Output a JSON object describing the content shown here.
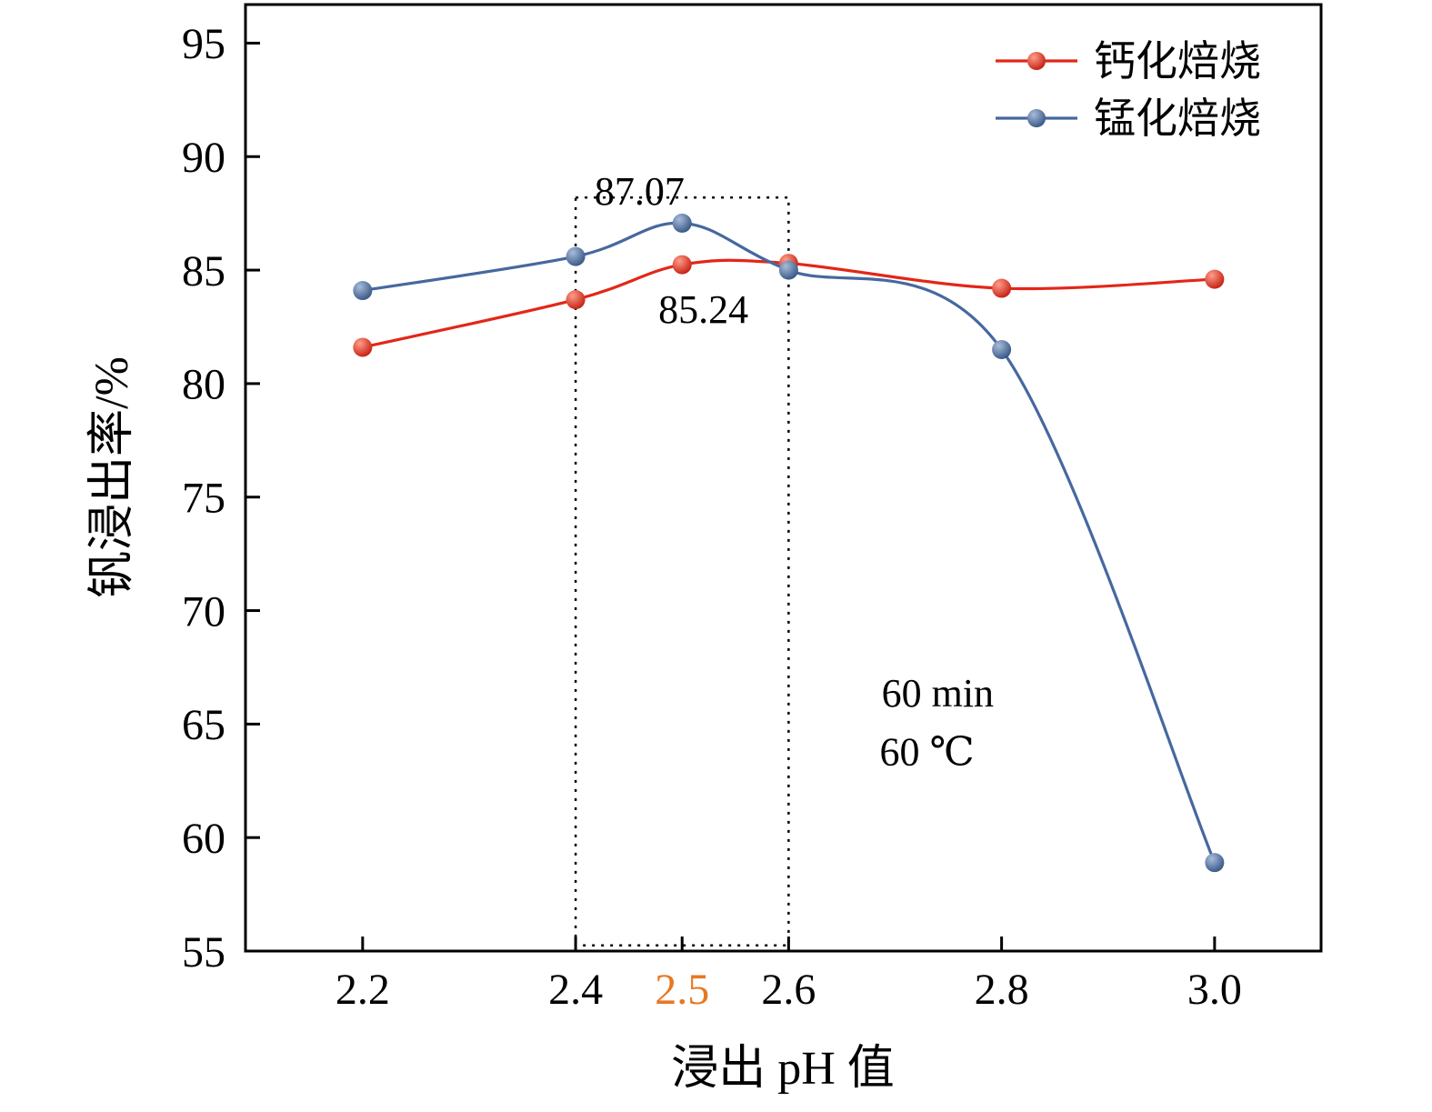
{
  "chart_data": {
    "type": "line",
    "title": "",
    "xlabel": "浸出 pH 值",
    "ylabel": "钒浸出率/%",
    "xlim": [
      2.09,
      3.1
    ],
    "ylim": [
      55,
      96.7
    ],
    "yticks": [
      55,
      60,
      65,
      70,
      75,
      80,
      85,
      90,
      95
    ],
    "xticks": [
      {
        "value": 2.2,
        "label": "2.2",
        "color": "#000000"
      },
      {
        "value": 2.4,
        "label": "2.4",
        "color": "#000000"
      },
      {
        "value": 2.5,
        "label": "2.5",
        "color": "#e87722"
      },
      {
        "value": 2.6,
        "label": "2.6",
        "color": "#000000"
      },
      {
        "value": 2.8,
        "label": "2.8",
        "color": "#000000"
      },
      {
        "value": 3.0,
        "label": "3.0",
        "color": "#000000"
      }
    ],
    "x": [
      2.2,
      2.4,
      2.5,
      2.6,
      2.8,
      3.0
    ],
    "series": [
      {
        "name": "钙化焙烧",
        "line_color": "#e22718",
        "marker_light": "#ff9d8a",
        "marker_dark": "#c01508",
        "values": [
          81.6,
          83.7,
          85.24,
          85.3,
          84.2,
          84.6
        ]
      },
      {
        "name": "锰化焙烧",
        "line_color": "#46689f",
        "marker_light": "#a8bcd9",
        "marker_dark": "#2d4e7e",
        "values": [
          84.1,
          85.6,
          87.07,
          85.0,
          81.5,
          58.9
        ]
      }
    ],
    "legend_position": "top-right",
    "grid": false,
    "annotations": [
      {
        "text": "87.07",
        "x": 2.46,
        "y": 88.5
      },
      {
        "text": "85.24",
        "x": 2.52,
        "y": 83.3
      },
      {
        "text": "60 min",
        "x": 2.74,
        "y": 66.4
      },
      {
        "text": "60 ℃",
        "x": 2.73,
        "y": 63.8
      }
    ],
    "highlight_box": {
      "x0": 2.4,
      "x1": 2.6,
      "y0": 55.25,
      "y1": 88.2,
      "style": "dotted"
    }
  }
}
